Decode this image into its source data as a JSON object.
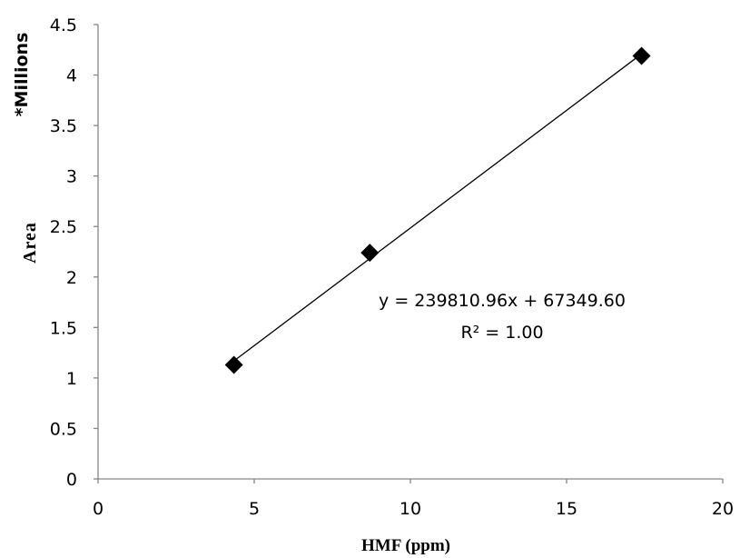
{
  "chart_data": {
    "type": "scatter",
    "title": "",
    "xlabel": "HMF (ppm)",
    "ylabel": "Area",
    "y_multiplier_label": "*Millions",
    "xlim": [
      0,
      20
    ],
    "ylim": [
      0,
      4.5
    ],
    "x_ticks": [
      "0",
      "5",
      "10",
      "15",
      "20"
    ],
    "y_ticks": [
      "0",
      "0.5",
      "1",
      "1.5",
      "2",
      "2.5",
      "3",
      "3.5",
      "4",
      "4.5"
    ],
    "grid": false,
    "legend": "none",
    "marker": "diamond",
    "marker_color": "#000000",
    "series": [
      {
        "x": [
          4.35,
          8.7,
          17.4
        ],
        "y": [
          1.13,
          2.24,
          4.19
        ]
      }
    ],
    "trendline": {
      "type": "linear",
      "x_range": [
        4.35,
        17.4
      ],
      "equation": "y = 239810.96x + 67349.60",
      "r_squared": "R² = 1.00"
    }
  }
}
